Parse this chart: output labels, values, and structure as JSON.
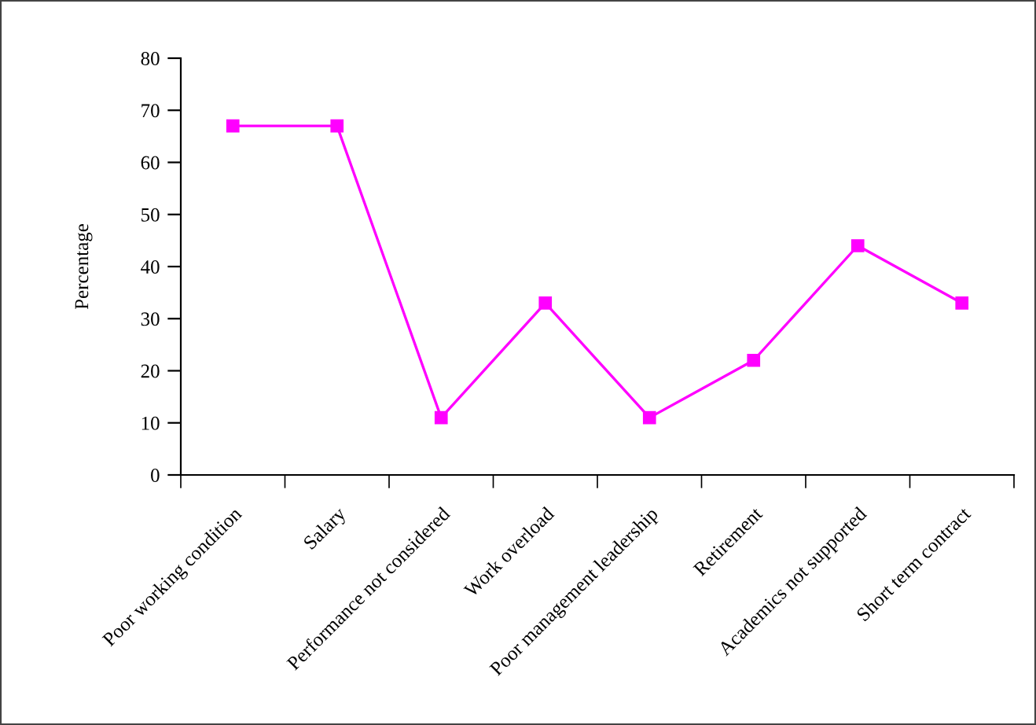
{
  "chart_data": {
    "type": "line",
    "ylabel": "Percentage",
    "categories": [
      "Poor working condition",
      "Salary",
      "Performance not considered",
      "Work overload",
      "Poor management leadership",
      "Retirement",
      "Academics not supported",
      "Short term contract"
    ],
    "series": [
      {
        "color": "#ff00ff",
        "values": [
          67,
          67,
          11,
          33,
          11,
          22,
          44,
          33
        ]
      }
    ],
    "ylim": [
      0,
      80
    ],
    "yticks": [
      0,
      10,
      20,
      30,
      40,
      50,
      60,
      70,
      80
    ],
    "grid": false,
    "legend": false,
    "marker": "square",
    "line_style": "solid"
  }
}
